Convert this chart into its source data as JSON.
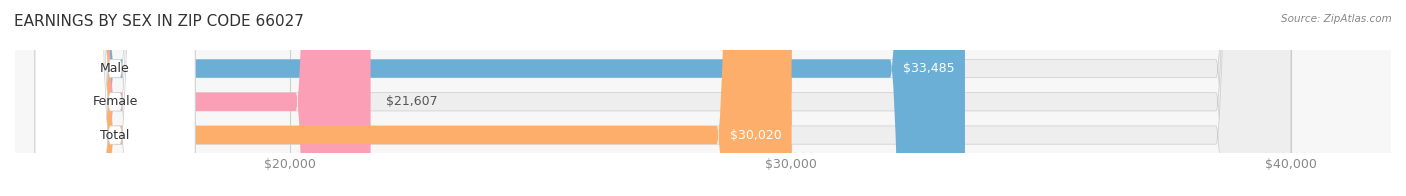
{
  "title": "EARNINGS BY SEX IN ZIP CODE 66027",
  "source": "Source: ZipAtlas.com",
  "categories": [
    "Male",
    "Female",
    "Total"
  ],
  "values": [
    33485,
    21607,
    30020
  ],
  "bar_colors": [
    "#6baed6",
    "#fa9fb5",
    "#fdae6b"
  ],
  "label_colors": [
    "#6baed6",
    "#fa9fb5",
    "#fdae6b"
  ],
  "bar_bg_color": "#f0f0f0",
  "background_color": "#ffffff",
  "xmin": 0,
  "xmax": 40000,
  "xticks": [
    20000,
    30000,
    40000
  ],
  "xtick_labels": [
    "$20,000",
    "$30,000",
    "$40,000"
  ],
  "bar_height": 0.55,
  "value_labels": [
    "$33,485",
    "$21,607",
    "$30,020"
  ],
  "title_fontsize": 11,
  "tick_fontsize": 9,
  "label_fontsize": 9,
  "value_fontsize": 9,
  "grid_color": "#d0d0d0"
}
